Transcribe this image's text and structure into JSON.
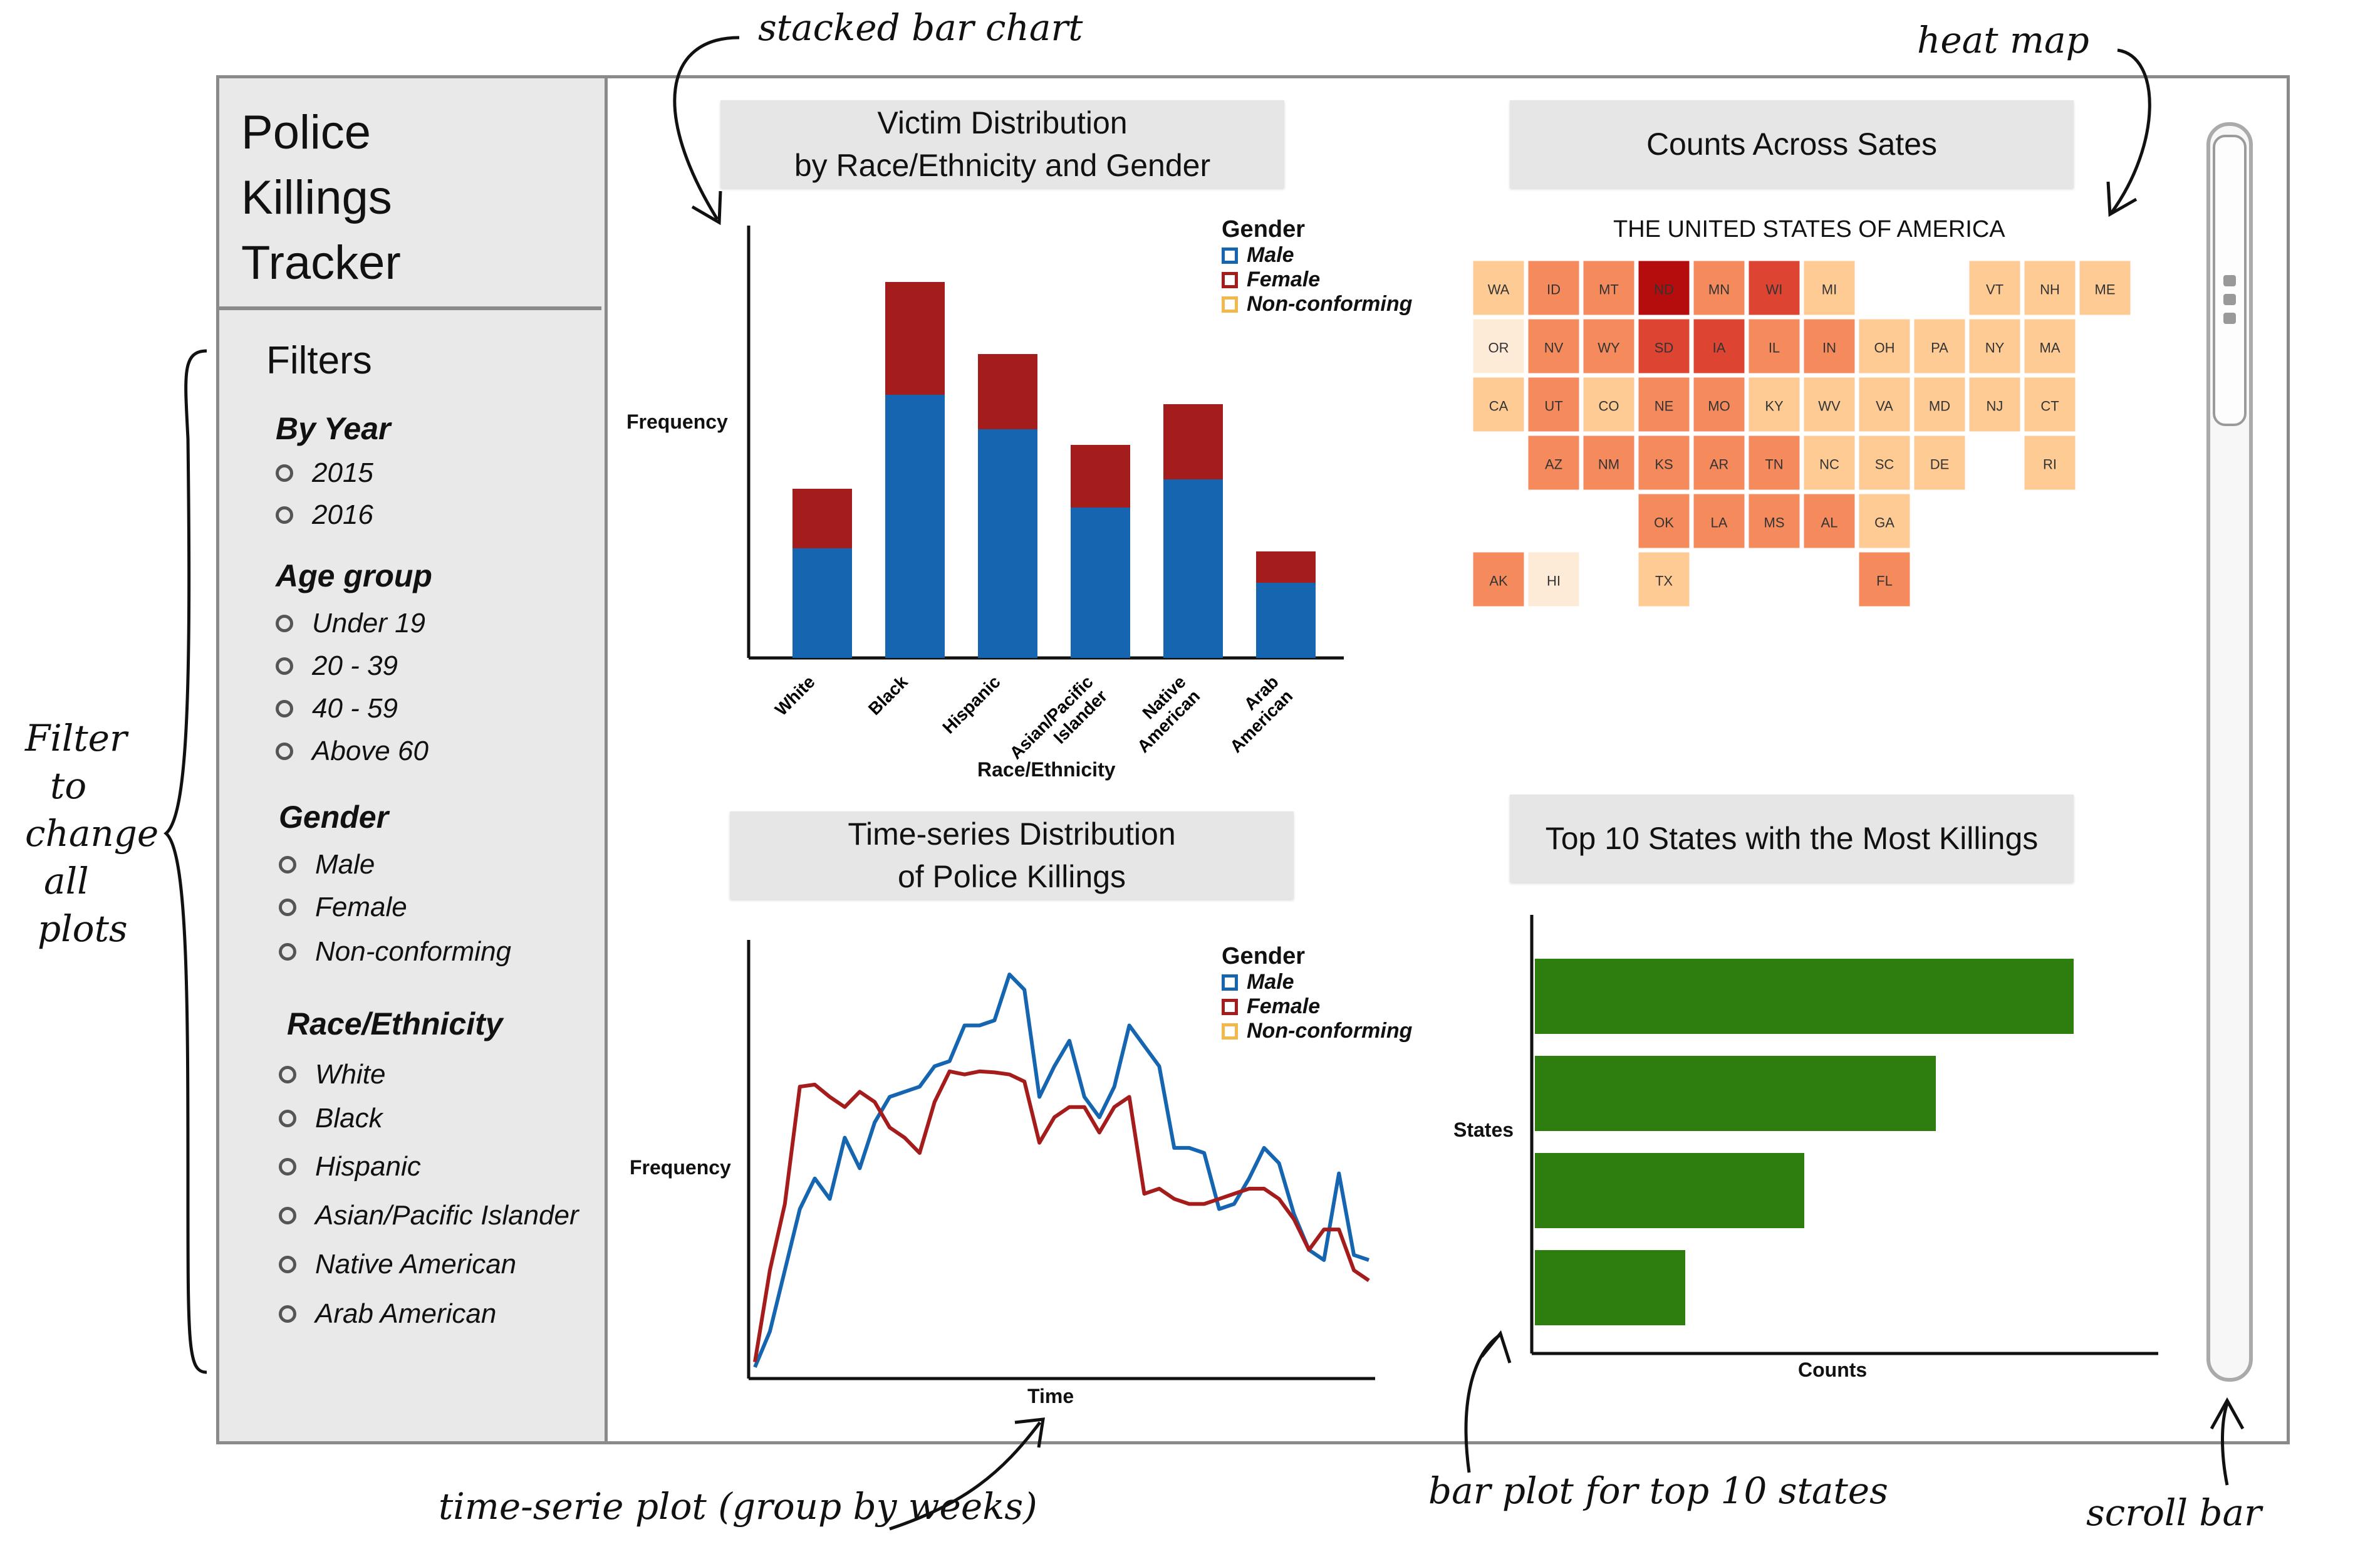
{
  "app": {
    "title_lines": [
      "Police",
      "Killings",
      "Tracker"
    ]
  },
  "filters": {
    "heading": "Filters",
    "groups": [
      {
        "label": "By Year",
        "options": [
          "2015",
          "2016"
        ]
      },
      {
        "label": "Age group",
        "options": [
          "Under 19",
          "20 - 39",
          "40 - 59",
          "Above 60"
        ]
      },
      {
        "label": "Gender",
        "options": [
          "Male",
          "Female",
          "Non-conforming"
        ]
      },
      {
        "label": "Race/Ethnicity",
        "options": [
          "White",
          "Black",
          "Hispanic",
          "Asian/Pacific Islander",
          "Native American",
          "Arab American"
        ]
      }
    ]
  },
  "panels": {
    "victim": {
      "title_l1": "Victim Distribution",
      "title_l2": "by Race/Ethnicity and Gender",
      "ylabel": "Frequency",
      "xlabel": "Race/Ethnicity"
    },
    "map": {
      "title": "Counts Across Sates",
      "map_title": "THE UNITED STATES OF AMERICA"
    },
    "timeseries": {
      "title_l1": "Time-series Distribution",
      "title_l2": "of Police Killings",
      "ylabel": "Frequency",
      "xlabel": "Time"
    },
    "top10": {
      "title": "Top 10 States with the Most Killings",
      "ylabel": "States",
      "xlabel": "Counts"
    }
  },
  "legend": {
    "title": "Gender",
    "items": [
      {
        "label": "Male",
        "color": "#1565b0"
      },
      {
        "label": "Female",
        "color": "#a51c1c"
      },
      {
        "label": "Non-conforming",
        "color": "#f2b84b"
      }
    ]
  },
  "chart_data": [
    {
      "type": "bar",
      "stacked": true,
      "categories": [
        "White",
        "Black",
        "Hispanic",
        "Asian/Pacific Islander",
        "Native American",
        "Arab American"
      ],
      "series": [
        {
          "name": "Male",
          "values": [
            175,
            420,
            365,
            240,
            285,
            120
          ]
        },
        {
          "name": "Female",
          "values": [
            95,
            180,
            120,
            100,
            120,
            50
          ]
        }
      ],
      "xlabel": "Race/Ethnicity",
      "ylabel": "Frequency",
      "ylim": [
        0,
        720
      ]
    },
    {
      "type": "line",
      "series": [
        {
          "name": "Male",
          "y": [
            5,
            40,
            100,
            160,
            190,
            170,
            230,
            200,
            245,
            270,
            275,
            280,
            300,
            305,
            340,
            340,
            345,
            390,
            375,
            270,
            300,
            325,
            270,
            250,
            280,
            340,
            320,
            300,
            220,
            220,
            215,
            160,
            165,
            190,
            220,
            205,
            155,
            120,
            110,
            195,
            115,
            110
          ]
        },
        {
          "name": "Female",
          "y": [
            10,
            100,
            165,
            280,
            282,
            270,
            260,
            275,
            265,
            240,
            230,
            215,
            265,
            295,
            292,
            295,
            294,
            292,
            285,
            225,
            250,
            260,
            260,
            235,
            260,
            270,
            175,
            180,
            170,
            165,
            165,
            170,
            175,
            180,
            180,
            170,
            150,
            120,
            140,
            140,
            100,
            90
          ]
        }
      ],
      "xlabel": "Time",
      "ylabel": "Frequency",
      "ylim": [
        0,
        430
      ]
    },
    {
      "type": "bar",
      "orientation": "horizontal",
      "values": [
        860,
        640,
        430,
        240
      ],
      "xlabel": "Counts",
      "ylabel": "States",
      "xlim": [
        0,
        1000
      ]
    }
  ],
  "map": {
    "states": [
      {
        "abbr": "WA",
        "level": 1
      },
      {
        "abbr": "OR",
        "level": 0
      },
      {
        "abbr": "CA",
        "level": 1
      },
      {
        "abbr": "NV",
        "level": 2
      },
      {
        "abbr": "ID",
        "level": 2
      },
      {
        "abbr": "MT",
        "level": 2
      },
      {
        "abbr": "WY",
        "level": 2
      },
      {
        "abbr": "UT",
        "level": 2
      },
      {
        "abbr": "AZ",
        "level": 2
      },
      {
        "abbr": "CO",
        "level": 1
      },
      {
        "abbr": "NM",
        "level": 2
      },
      {
        "abbr": "ND",
        "level": 4
      },
      {
        "abbr": "SD",
        "level": 3
      },
      {
        "abbr": "NE",
        "level": 2
      },
      {
        "abbr": "KS",
        "level": 2
      },
      {
        "abbr": "OK",
        "level": 2
      },
      {
        "abbr": "TX",
        "level": 1
      },
      {
        "abbr": "MN",
        "level": 2
      },
      {
        "abbr": "IA",
        "level": 3
      },
      {
        "abbr": "MO",
        "level": 2
      },
      {
        "abbr": "AR",
        "level": 2
      },
      {
        "abbr": "LA",
        "level": 2
      },
      {
        "abbr": "WI",
        "level": 3
      },
      {
        "abbr": "IL",
        "level": 2
      },
      {
        "abbr": "MI",
        "level": 1
      },
      {
        "abbr": "IN",
        "level": 2
      },
      {
        "abbr": "OH",
        "level": 1
      },
      {
        "abbr": "KY",
        "level": 1
      },
      {
        "abbr": "TN",
        "level": 2
      },
      {
        "abbr": "MS",
        "level": 2
      },
      {
        "abbr": "AL",
        "level": 2
      },
      {
        "abbr": "GA",
        "level": 1
      },
      {
        "abbr": "FL",
        "level": 2
      },
      {
        "abbr": "SC",
        "level": 1
      },
      {
        "abbr": "NC",
        "level": 1
      },
      {
        "abbr": "VA",
        "level": 1
      },
      {
        "abbr": "WV",
        "level": 1
      },
      {
        "abbr": "PA",
        "level": 1
      },
      {
        "abbr": "NY",
        "level": 1
      },
      {
        "abbr": "ME",
        "level": 1
      },
      {
        "abbr": "VT",
        "level": 1
      },
      {
        "abbr": "NH",
        "level": 1
      },
      {
        "abbr": "MA",
        "level": 1
      },
      {
        "abbr": "CT",
        "level": 1
      },
      {
        "abbr": "RI",
        "level": 1
      },
      {
        "abbr": "NJ",
        "level": 1
      },
      {
        "abbr": "DE",
        "level": 1
      },
      {
        "abbr": "MD",
        "level": 1
      },
      {
        "abbr": "AK",
        "level": 2
      },
      {
        "abbr": "HI",
        "level": 0
      }
    ],
    "palette": [
      "#fdebd7",
      "#fdcb93",
      "#f58a5c",
      "#dd4432",
      "#b50d0d"
    ]
  },
  "annotations": {
    "stacked": "stacked bar chart",
    "heat": "heat map",
    "filter": [
      "Filter",
      "to",
      "change",
      "all",
      "plots"
    ],
    "timeseries": "time-serie plot (group by weeks)",
    "barplot": "bar plot for top 10 states",
    "scroll": "scroll bar"
  },
  "scrollbar": {
    "position": 0.0
  }
}
